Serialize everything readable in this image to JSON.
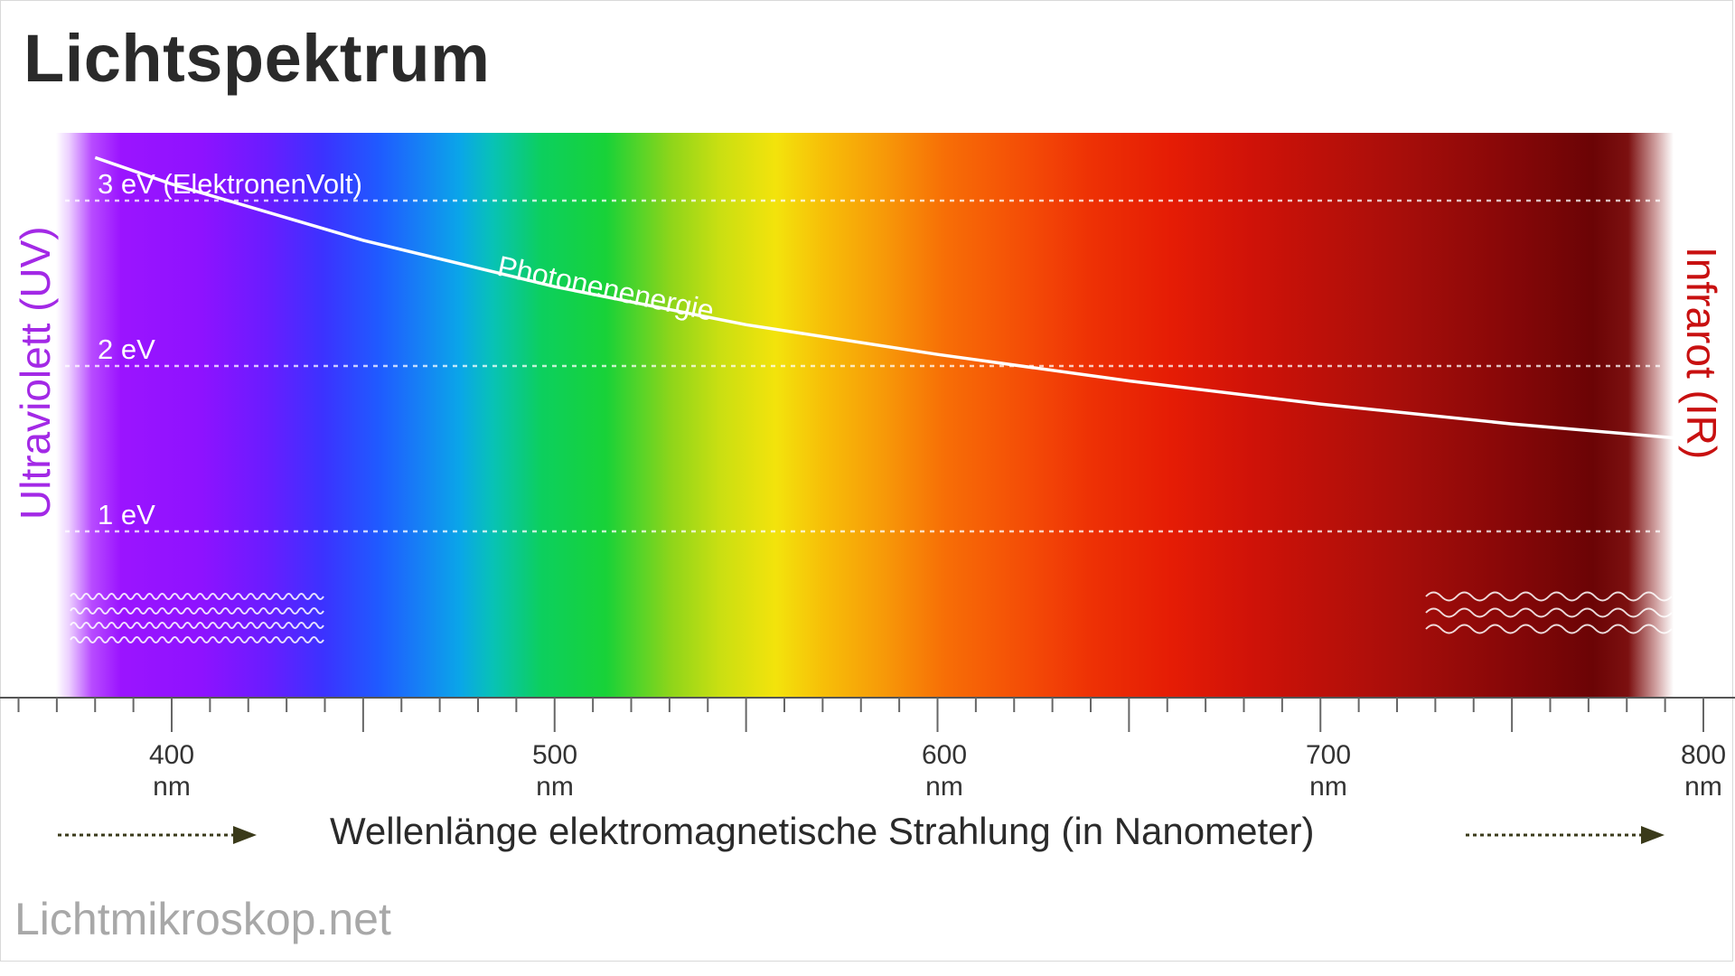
{
  "title": "Lichtspektrum",
  "side_labels": {
    "left": "Ultraviolett (UV)",
    "right": "Infrarot (IR)"
  },
  "energy_levels": [
    {
      "label": "3 eV (ElektronenVolt)",
      "value": 3
    },
    {
      "label": "2 eV",
      "value": 2
    },
    {
      "label": "1 eV",
      "value": 1
    }
  ],
  "curve_label": "Photonenenergie",
  "x_axis": {
    "title": "Wellenlänge elektromagnetische Strahlung (in Nanometer)",
    "unit": "nm",
    "min": 380,
    "max": 800,
    "ticks": [
      {
        "value": "400",
        "unit": "nm"
      },
      {
        "value": "500",
        "unit": "nm"
      },
      {
        "value": "600",
        "unit": "nm"
      },
      {
        "value": "700",
        "unit": "nm"
      },
      {
        "value": "800",
        "unit": "nm"
      }
    ]
  },
  "footer": "Lichtmikroskop.net",
  "chart_data": {
    "type": "line",
    "title": "Lichtspektrum",
    "xlabel": "Wellenlänge elektromagnetische Strahlung (in Nanometer)",
    "ylabel": "",
    "xlim": [
      380,
      800
    ],
    "ylim": [
      0,
      3.5
    ],
    "series": [
      {
        "name": "Photonenenergie",
        "x": [
          380,
          400,
          450,
          500,
          550,
          600,
          650,
          700,
          750,
          795
        ],
        "y": [
          3.26,
          3.1,
          2.76,
          2.48,
          2.25,
          2.07,
          1.91,
          1.77,
          1.65,
          1.56
        ]
      }
    ],
    "grid": "dashed horizontal at 1, 2, 3 eV",
    "colors": {
      "uv_label": "#a329e6",
      "ir_label": "#c81010",
      "curve": "#ffffff"
    }
  }
}
